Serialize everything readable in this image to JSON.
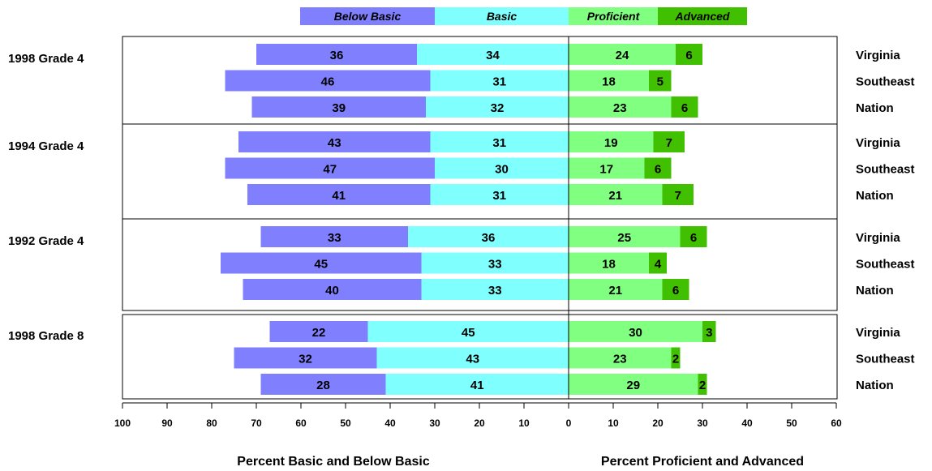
{
  "chart_data": {
    "type": "bar",
    "orientation": "horizontal-diverging",
    "legend": {
      "position": "top-center",
      "items": [
        {
          "label": "Below Basic",
          "color": "#8080FF"
        },
        {
          "label": "Basic",
          "color": "#80FFFF"
        },
        {
          "label": "Proficient",
          "color": "#80FF80"
        },
        {
          "label": "Advanced",
          "color": "#40C000"
        }
      ]
    },
    "groups": [
      {
        "label": "1998 Grade 4",
        "rows": [
          {
            "label": "Virginia",
            "below_basic": 36,
            "basic": 34,
            "proficient": 24,
            "advanced": 6
          },
          {
            "label": "Southeast",
            "below_basic": 46,
            "basic": 31,
            "proficient": 18,
            "advanced": 5
          },
          {
            "label": "Nation",
            "below_basic": 39,
            "basic": 32,
            "proficient": 23,
            "advanced": 6
          }
        ]
      },
      {
        "label": "1994 Grade 4",
        "rows": [
          {
            "label": "Virginia",
            "below_basic": 43,
            "basic": 31,
            "proficient": 19,
            "advanced": 7
          },
          {
            "label": "Southeast",
            "below_basic": 47,
            "basic": 30,
            "proficient": 17,
            "advanced": 6
          },
          {
            "label": "Nation",
            "below_basic": 41,
            "basic": 31,
            "proficient": 21,
            "advanced": 7
          }
        ]
      },
      {
        "label": "1992 Grade 4",
        "rows": [
          {
            "label": "Virginia",
            "below_basic": 33,
            "basic": 36,
            "proficient": 25,
            "advanced": 6
          },
          {
            "label": "Southeast",
            "below_basic": 45,
            "basic": 33,
            "proficient": 18,
            "advanced": 4
          },
          {
            "label": "Nation",
            "below_basic": 40,
            "basic": 33,
            "proficient": 21,
            "advanced": 6
          }
        ]
      },
      {
        "label": "1998 Grade 8",
        "rows": [
          {
            "label": "Virginia",
            "below_basic": 22,
            "basic": 45,
            "proficient": 30,
            "advanced": 3
          },
          {
            "label": "Southeast",
            "below_basic": 32,
            "basic": 43,
            "proficient": 23,
            "advanced": 2
          },
          {
            "label": "Nation",
            "below_basic": 28,
            "basic": 41,
            "proficient": 29,
            "advanced": 2
          }
        ]
      }
    ],
    "x_ticks": [
      "100",
      "90",
      "80",
      "70",
      "60",
      "50",
      "40",
      "30",
      "20",
      "10",
      "0",
      "10",
      "20",
      "30",
      "40",
      "50",
      "60"
    ],
    "xlim": [
      -100,
      60
    ],
    "xlabel_left": "Percent Basic and Below Basic",
    "xlabel_right": "Percent Proficient and Advanced",
    "grid": false
  }
}
